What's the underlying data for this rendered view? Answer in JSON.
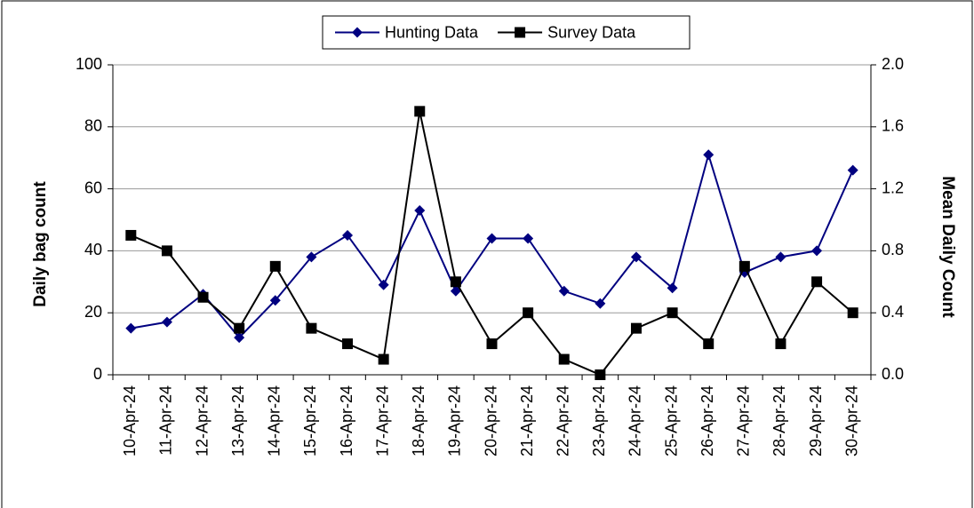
{
  "chart_data": {
    "type": "line",
    "categories": [
      "10-Apr-24",
      "11-Apr-24",
      "12-Apr-24",
      "13-Apr-24",
      "14-Apr-24",
      "15-Apr-24",
      "16-Apr-24",
      "17-Apr-24",
      "18-Apr-24",
      "19-Apr-24",
      "20-Apr-24",
      "21-Apr-24",
      "22-Apr-24",
      "23-Apr-24",
      "24-Apr-24",
      "25-Apr-24",
      "26-Apr-24",
      "27-Apr-24",
      "28-Apr-24",
      "29-Apr-24",
      "30-Apr-24"
    ],
    "series": [
      {
        "name": "Hunting Data",
        "color": "#000080",
        "marker": "diamond",
        "values": [
          15,
          17,
          26,
          12,
          24,
          38,
          45,
          29,
          53,
          27,
          44,
          44,
          27,
          23,
          38,
          28,
          71,
          33,
          38,
          40,
          66
        ]
      },
      {
        "name": "Survey Data",
        "color": "#000000",
        "marker": "square",
        "axis": "y2",
        "values": [
          0.9,
          0.8,
          0.5,
          0.3,
          0.7,
          0.3,
          0.2,
          0.1,
          1.7,
          0.6,
          0.2,
          0.4,
          0.1,
          0.0,
          0.3,
          0.4,
          0.2,
          0.7,
          0.2,
          0.6,
          0.4
        ]
      }
    ],
    "ylabel": "Daily bag count",
    "y2label": "Mean Daily Count",
    "ylim": [
      0,
      100
    ],
    "yticks": [
      0,
      20,
      40,
      60,
      80,
      100
    ],
    "y2lim": [
      0,
      2
    ],
    "y2ticks": [
      {
        "value": 0,
        "label": "0.0"
      },
      0.4,
      0.8,
      1.2,
      1.6,
      {
        "value": 2,
        "label": "2.0"
      }
    ],
    "grid": true,
    "legend": "top"
  }
}
